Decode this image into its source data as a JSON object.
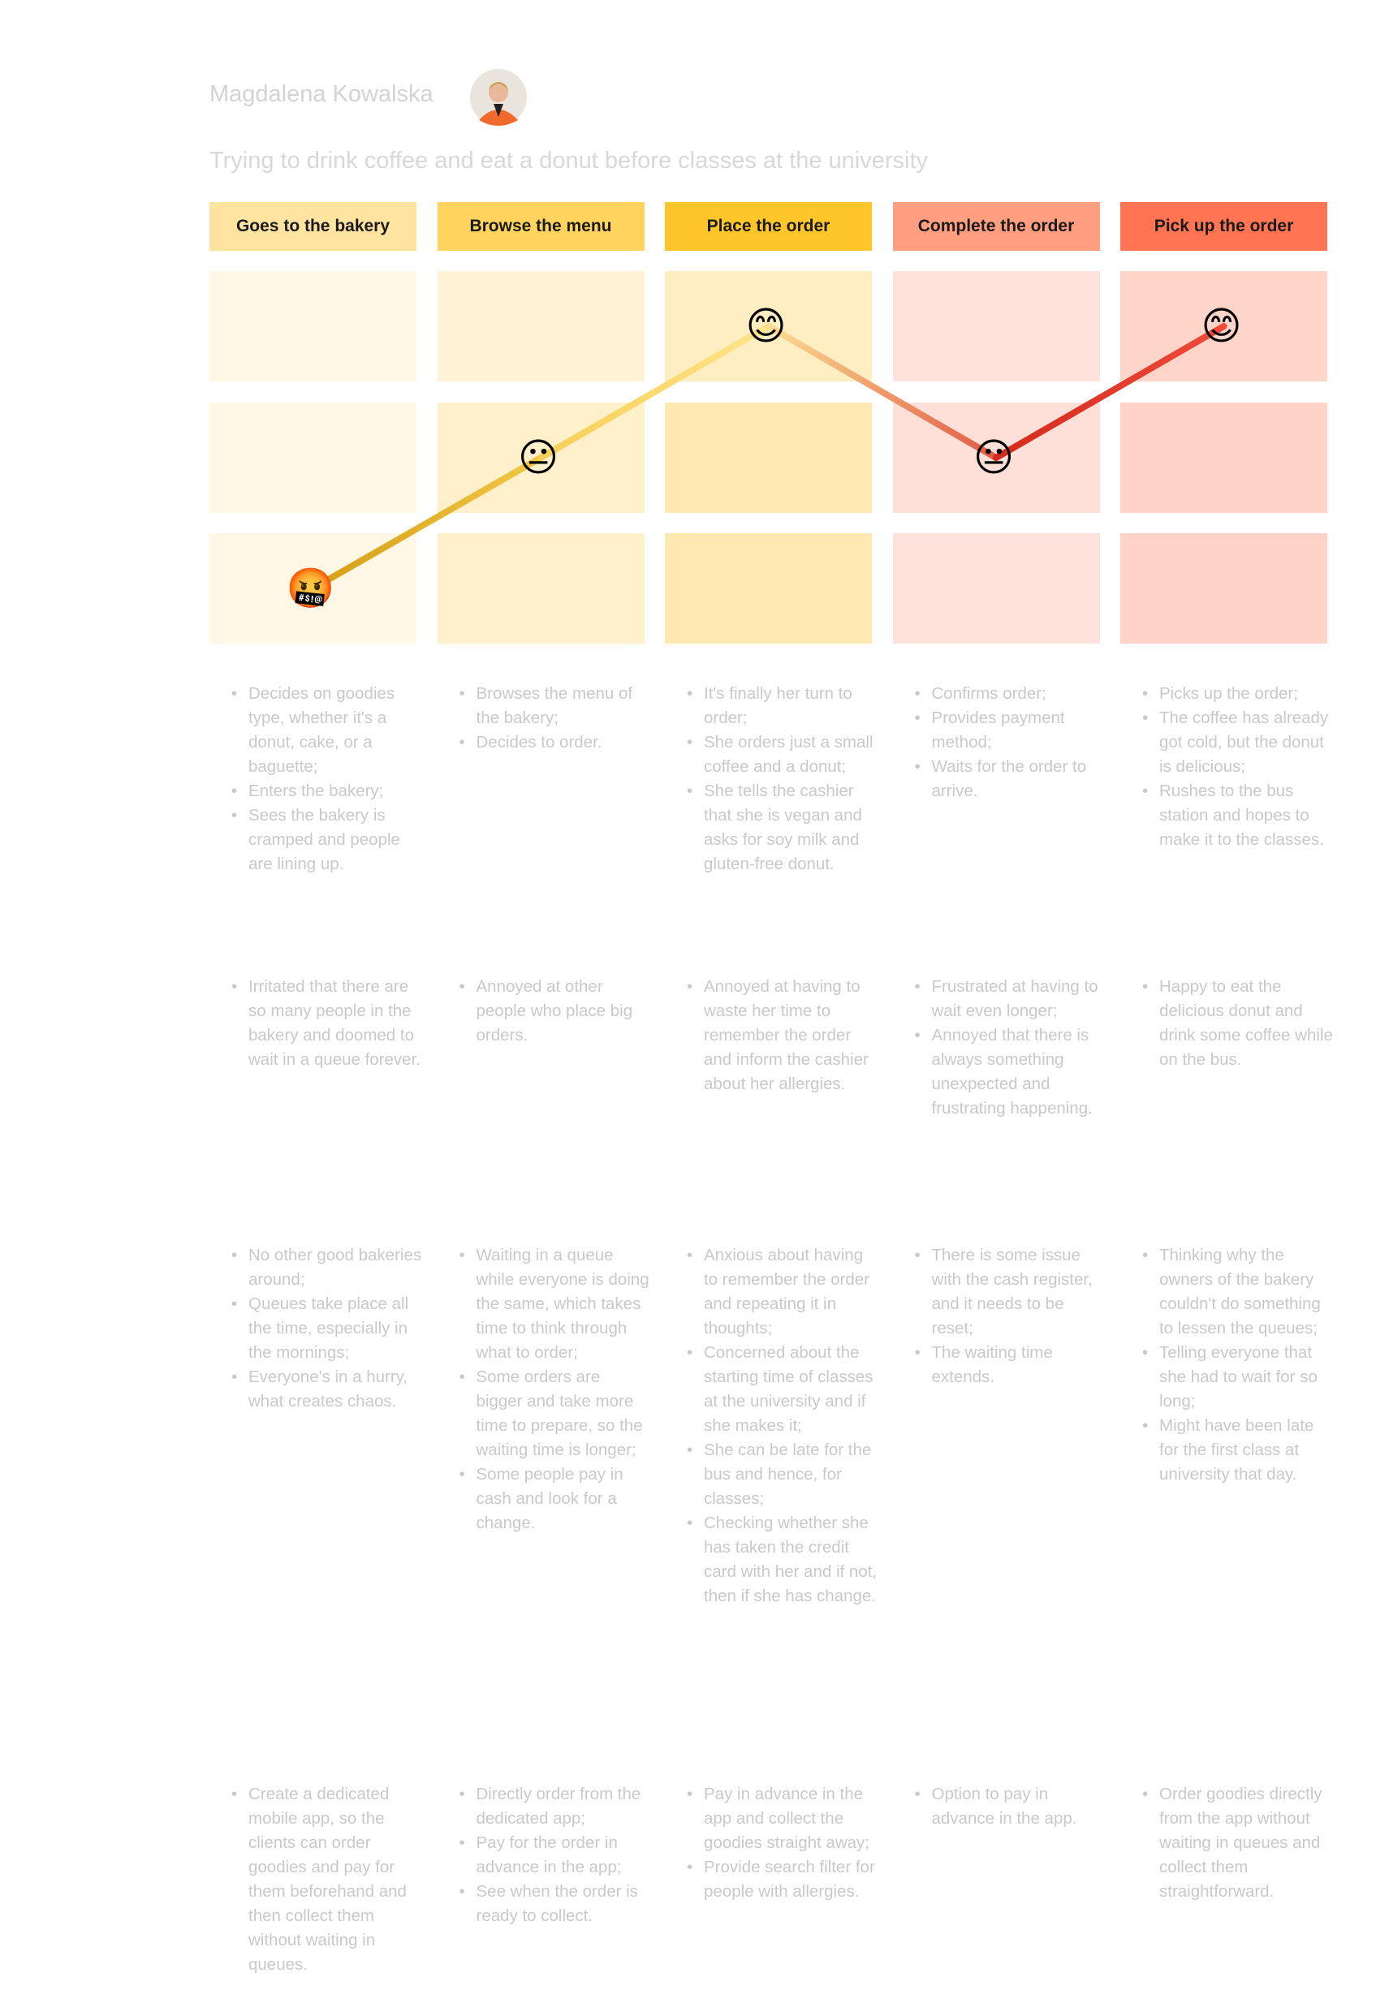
{
  "persona": {
    "name": "Magdalena Kowalska"
  },
  "scenario": "Trying to drink coffee and eat a donut before classes at the university",
  "stages": [
    {
      "title": "Goes to the bakery",
      "emoji": "🤬",
      "level": 1,
      "lanes": [
        [
          "Decides on goodies type, whether it's a donut, cake, or a baguette;",
          "Enters the bakery;",
          "Sees the bakery is cramped and people are lining up."
        ],
        [
          "Irritated that there are so many people in the bakery and doomed to wait in a queue forever."
        ],
        [
          "No other good bakeries around;",
          "Queues take place all the time, especially in the mornings;",
          "Everyone's in a hurry, what creates chaos."
        ],
        [
          "Create a dedicated mobile app, so the clients can order goodies and pay for them beforehand and then collect them without waiting in queues."
        ]
      ]
    },
    {
      "title": "Browse the menu",
      "emoji": "😐",
      "level": 2,
      "lanes": [
        [
          "Browses the menu of the bakery;",
          "Decides to order."
        ],
        [
          "Annoyed at other people who place big orders."
        ],
        [
          "Waiting in a queue while everyone is doing the same, which takes time to think through what to order;",
          "Some orders are bigger and take more time to prepare, so the waiting time is longer;",
          "Some people pay in cash and look for a change."
        ],
        [
          "Directly order from the dedicated app;",
          "Pay for the order in advance in the app;",
          "See when the order is ready to collect."
        ]
      ]
    },
    {
      "title": "Place the order",
      "emoji": "😊",
      "level": 3,
      "lanes": [
        [
          "It's finally her turn to order;",
          "She orders just a small coffee and a donut;",
          "She tells the cashier that she is vegan and asks for soy milk and gluten-free donut."
        ],
        [
          "Annoyed at having to waste her time to remember the order and inform the cashier about her allergies."
        ],
        [
          "Anxious about having to remember the order and repeating it in thoughts;",
          "Concerned about the starting time of classes at the university and if she makes it;",
          "She can be late for the bus and hence, for classes;",
          "Checking whether she has taken the credit card with her and if not, then if she has change."
        ],
        [
          "Pay in advance in the app and collect the goodies straight away;",
          "Provide search filter for people with allergies."
        ]
      ]
    },
    {
      "title": "Complete the order",
      "emoji": "😐",
      "level": 2,
      "lanes": [
        [
          "Confirms order;",
          "Provides payment method;",
          "Waits for the order to arrive."
        ],
        [
          "Frustrated at having to wait even longer;",
          "Annoyed that there is always something unexpected and frustrating happening."
        ],
        [
          "There is some issue with the cash register, and it needs to be reset;",
          "The waiting time extends."
        ],
        [
          "Option to pay in advance in the app."
        ]
      ]
    },
    {
      "title": "Pick up the order",
      "emoji": "😊",
      "level": 3,
      "lanes": [
        [
          "Picks up the order;",
          "The coffee has already got cold, but the donut is delicious;",
          "Rushes to the bus station and hopes to make it to the classes."
        ],
        [
          "Happy to eat the delicious donut and drink some coffee while on the bus."
        ],
        [
          "Thinking why the owners of the bakery couldn't do something to lessen the queues;",
          "Telling everyone that she had to wait for so long;",
          "Might have been late for the first class at university that day."
        ],
        [
          "Order goodies directly from the app without waiting in queues and collect them straightforward."
        ]
      ]
    }
  ]
}
